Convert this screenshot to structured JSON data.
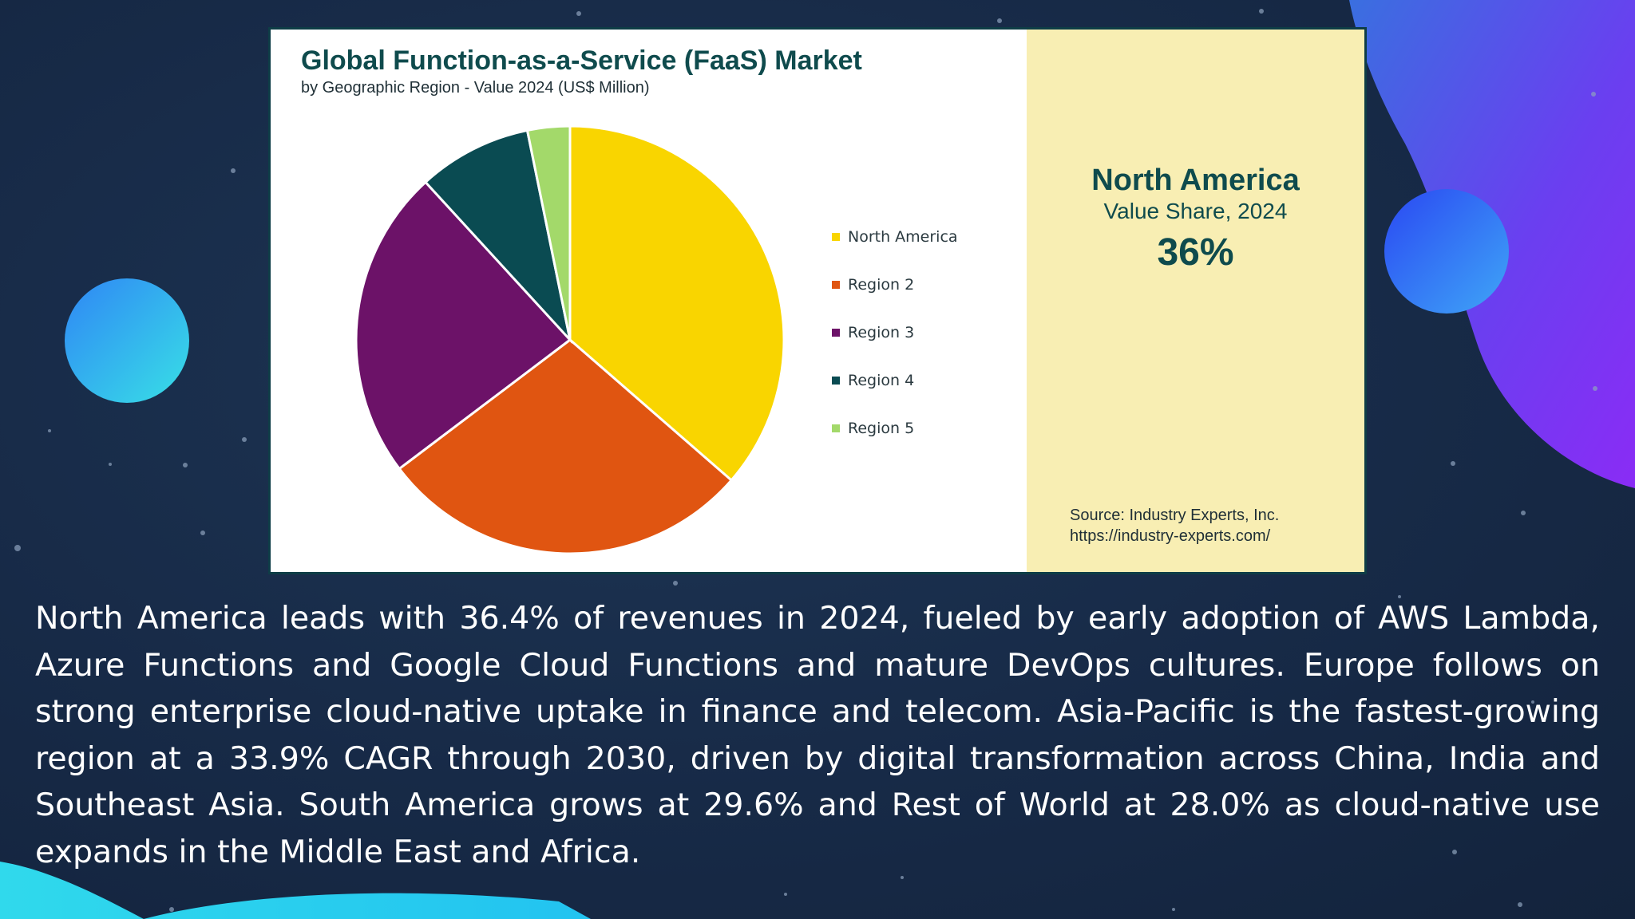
{
  "chart_data": {
    "type": "pie",
    "title": "Global Function-as-a-Service (FaaS) Market",
    "subtitle": "by Geographic Region - Value 2024 (US$ Million)",
    "categories": [
      "North America",
      "Region 2",
      "Region 3",
      "Region 4",
      "Region 5"
    ],
    "values": [
      36.4,
      28.3,
      23.5,
      8.6,
      3.2
    ],
    "colors": [
      "#f9d500",
      "#e05511",
      "#6c1268",
      "#0a4b52",
      "#a3d96a"
    ],
    "legend_position": "right"
  },
  "highlight": {
    "region": "North America",
    "caption": "Value Share, 2024",
    "value": "36%"
  },
  "source": {
    "line1": "Source: Industry Experts, Inc.",
    "line2": "https://industry-experts.com/"
  },
  "description": "North America leads with 36.4% of revenues in 2024, fueled by early adoption of AWS Lambda, Azure Functions and Google Cloud Functions and mature DevOps cultures. Europe follows on strong enterprise cloud-native uptake in finance and telecom. Asia-Pacific is the fastest-growing region at a 33.9% CAGR through 2030, driven by digital transformation across China, India and Southeast Asia. South America grows at 29.6% and Rest of World at 28.0% as cloud-native use expands in the Middle East and Africa."
}
